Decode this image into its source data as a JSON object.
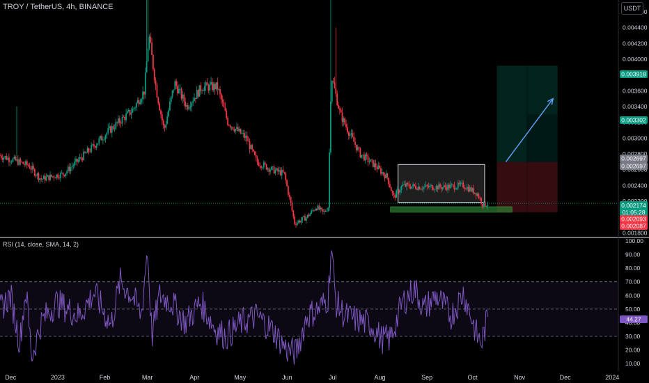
{
  "header": {
    "symbol_title": "TROY / TetherUS, 4h, BINANCE",
    "unit_button": "USDT"
  },
  "rsi_legend": "RSI (14, close, SMA, 14, 2)",
  "price_labels": {
    "tp": {
      "text": "0.003918",
      "color": "#089981"
    },
    "mid_green": {
      "text": "0.003302",
      "color": "#089981"
    },
    "gray1": {
      "text": "0.002697",
      "color": "#787b86"
    },
    "gray2": {
      "text": "0.002697",
      "color": "#787b86"
    },
    "current": {
      "text": "0.002174",
      "color": "#089981"
    },
    "countdown": {
      "text": "01:05:28",
      "color": "#089981"
    },
    "red1": {
      "text": "0.002093",
      "color": "#f23645"
    },
    "red2": {
      "text": "0.002087",
      "color": "#f23645"
    },
    "rsi_value": {
      "text": "44.27",
      "color": "#7e57c2"
    }
  },
  "chart_data": [
    {
      "type": "candlestick",
      "title": "TROY / TetherUS, 4h, BINANCE",
      "y_unit": "USDT",
      "ylim": [
        0.00175,
        0.00475
      ],
      "y_ticks": [
        "0.004600",
        "0.004400",
        "0.004200",
        "0.004000",
        "0.003800",
        "0.003600",
        "0.003400",
        "0.003200",
        "0.003000",
        "0.002800",
        "0.002600",
        "0.002400",
        "0.002200",
        "0.001800"
      ],
      "y_tick_values": [
        0.0046,
        0.0044,
        0.0042,
        0.004,
        0.0038,
        0.0036,
        0.0034,
        0.0032,
        0.003,
        0.0028,
        0.0026,
        0.0024,
        0.0022,
        0.0018
      ],
      "x_ticks": [
        "Dec",
        "2023",
        "Feb",
        "Mar",
        "Apr",
        "May",
        "Jun",
        "Jul",
        "Aug",
        "Sep",
        "Oct",
        "Nov",
        "Dec",
        "2024"
      ],
      "x_tick_days": [
        0,
        31,
        62,
        90,
        121,
        151,
        182,
        212,
        243,
        274,
        304,
        335,
        365,
        396
      ],
      "x_range_days": [
        -7,
        400
      ],
      "price_path": [
        {
          "d": -7,
          "p": 0.00278
        },
        {
          "d": 5,
          "p": 0.0027
        },
        {
          "d": 12,
          "p": 0.00265
        },
        {
          "d": 20,
          "p": 0.00248
        },
        {
          "d": 35,
          "p": 0.00255
        },
        {
          "d": 52,
          "p": 0.00285
        },
        {
          "d": 65,
          "p": 0.0031
        },
        {
          "d": 80,
          "p": 0.00335
        },
        {
          "d": 88,
          "p": 0.0036
        },
        {
          "d": 91,
          "p": 0.0043
        },
        {
          "d": 96,
          "p": 0.0036
        },
        {
          "d": 101,
          "p": 0.0031
        },
        {
          "d": 108,
          "p": 0.0037
        },
        {
          "d": 116,
          "p": 0.0034
        },
        {
          "d": 126,
          "p": 0.00365
        },
        {
          "d": 136,
          "p": 0.00365
        },
        {
          "d": 143,
          "p": 0.0032
        },
        {
          "d": 155,
          "p": 0.003
        },
        {
          "d": 162,
          "p": 0.0027
        },
        {
          "d": 172,
          "p": 0.0026
        },
        {
          "d": 180,
          "p": 0.00255
        },
        {
          "d": 184,
          "p": 0.0022
        },
        {
          "d": 187,
          "p": 0.00192
        },
        {
          "d": 195,
          "p": 0.002
        },
        {
          "d": 201,
          "p": 0.00213
        },
        {
          "d": 206,
          "p": 0.00205
        },
        {
          "d": 209,
          "p": 0.00213
        },
        {
          "d": 211,
          "p": 0.0038
        },
        {
          "d": 217,
          "p": 0.0033
        },
        {
          "d": 222,
          "p": 0.0031
        },
        {
          "d": 230,
          "p": 0.0028
        },
        {
          "d": 240,
          "p": 0.00265
        },
        {
          "d": 248,
          "p": 0.0025
        },
        {
          "d": 252,
          "p": 0.00225
        },
        {
          "d": 258,
          "p": 0.0024
        },
        {
          "d": 270,
          "p": 0.00238
        },
        {
          "d": 285,
          "p": 0.00238
        },
        {
          "d": 298,
          "p": 0.0024
        },
        {
          "d": 307,
          "p": 0.0023
        },
        {
          "d": 311,
          "p": 0.00215
        },
        {
          "d": 314,
          "p": 0.00217
        }
      ],
      "spikes": [
        {
          "d": 90,
          "high": 0.00475
        },
        {
          "d": 211,
          "high": 0.00475
        },
        {
          "d": 214,
          "high": 0.0044
        },
        {
          "d": 4,
          "high": 0.0034
        }
      ],
      "current_price": 0.002174,
      "annotations": {
        "consolidation_box": {
          "d_from": 255,
          "d_to": 312,
          "p_from": 0.002185,
          "p_to": 0.002665
        },
        "support_zone": {
          "d_from": 250,
          "d_to": 330,
          "p_from": 0.00206,
          "p_to": 0.00213
        },
        "long_position": {
          "d_from": 320,
          "d_to": 360,
          "entry": 0.002697,
          "target": 0.003918,
          "stop": 0.00206,
          "split_d": 340
        },
        "arrow": {
          "d_from": 326,
          "p_from": 0.0027,
          "d_to": 357,
          "p_to": 0.0035
        }
      }
    },
    {
      "type": "line",
      "title": "RSI (14, close, SMA, 14, 2)",
      "ylim": [
        5,
        102
      ],
      "y_ticks": [
        "100.00",
        "90.00",
        "80.00",
        "70.00",
        "60.00",
        "50.00",
        "40.00",
        "30.00",
        "20.00",
        "10.00"
      ],
      "y_tick_values": [
        100,
        90,
        80,
        70,
        60,
        50,
        40,
        30,
        20,
        10
      ],
      "bands": {
        "upper": 70,
        "middle": 50,
        "lower": 30
      },
      "series_color": "#7e57c2",
      "last_value": 44.27,
      "x_range_days": [
        -7,
        314
      ],
      "anchor_points": [
        {
          "d": -7,
          "v": 50
        },
        {
          "d": 0,
          "v": 60
        },
        {
          "d": 6,
          "v": 25
        },
        {
          "d": 10,
          "v": 65
        },
        {
          "d": 14,
          "v": 15
        },
        {
          "d": 20,
          "v": 40
        },
        {
          "d": 30,
          "v": 55
        },
        {
          "d": 45,
          "v": 45
        },
        {
          "d": 55,
          "v": 62
        },
        {
          "d": 66,
          "v": 38
        },
        {
          "d": 72,
          "v": 70
        },
        {
          "d": 80,
          "v": 60
        },
        {
          "d": 86,
          "v": 45
        },
        {
          "d": 90,
          "v": 95
        },
        {
          "d": 93,
          "v": 30
        },
        {
          "d": 98,
          "v": 60
        },
        {
          "d": 106,
          "v": 55
        },
        {
          "d": 115,
          "v": 40
        },
        {
          "d": 125,
          "v": 55
        },
        {
          "d": 135,
          "v": 35
        },
        {
          "d": 142,
          "v": 30
        },
        {
          "d": 152,
          "v": 40
        },
        {
          "d": 162,
          "v": 45
        },
        {
          "d": 172,
          "v": 35
        },
        {
          "d": 182,
          "v": 20
        },
        {
          "d": 188,
          "v": 18
        },
        {
          "d": 195,
          "v": 45
        },
        {
          "d": 203,
          "v": 50
        },
        {
          "d": 209,
          "v": 58
        },
        {
          "d": 211,
          "v": 97
        },
        {
          "d": 214,
          "v": 55
        },
        {
          "d": 220,
          "v": 45
        },
        {
          "d": 228,
          "v": 42
        },
        {
          "d": 238,
          "v": 38
        },
        {
          "d": 244,
          "v": 28
        },
        {
          "d": 250,
          "v": 28
        },
        {
          "d": 258,
          "v": 55
        },
        {
          "d": 266,
          "v": 65
        },
        {
          "d": 272,
          "v": 50
        },
        {
          "d": 280,
          "v": 60
        },
        {
          "d": 290,
          "v": 45
        },
        {
          "d": 298,
          "v": 62
        },
        {
          "d": 303,
          "v": 45
        },
        {
          "d": 307,
          "v": 30
        },
        {
          "d": 310,
          "v": 25
        },
        {
          "d": 314,
          "v": 44.27
        }
      ]
    }
  ]
}
